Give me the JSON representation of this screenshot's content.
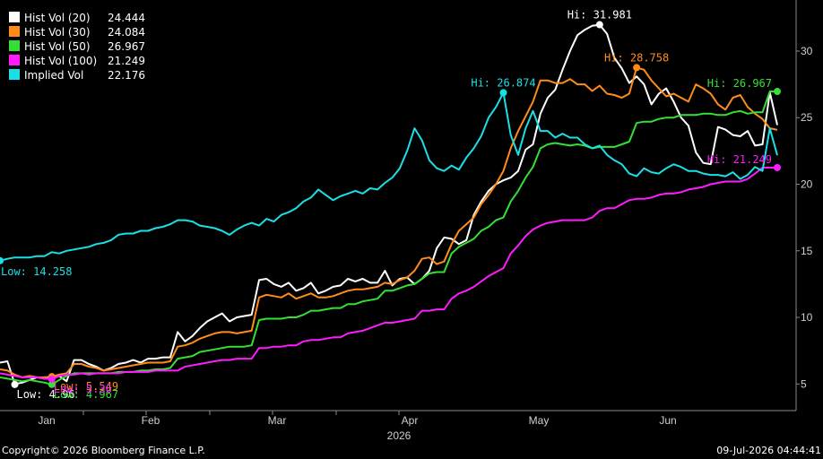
{
  "chart_data": {
    "type": "line",
    "year_label": "2026",
    "x_ticks": [
      "Jan",
      "Feb",
      "Mar",
      "Apr",
      "May",
      "Jun"
    ],
    "y_ticks": [
      5,
      10,
      15,
      20,
      25,
      30
    ],
    "ylim": [
      3,
      33.5
    ],
    "grid": false,
    "legend_position": "top-left",
    "series": [
      {
        "name": "Hist Vol (20)",
        "last": "24.444",
        "color": "#ffffff",
        "values": [
          6.6,
          6.7,
          5.0,
          5.1,
          5.3,
          5.5,
          5.4,
          5.5,
          5.6,
          5.2,
          6.8,
          6.8,
          6.5,
          6.3,
          6.0,
          6.2,
          6.5,
          6.6,
          6.8,
          6.6,
          6.9,
          6.9,
          7.0,
          7.0,
          8.9,
          8.2,
          8.6,
          9.2,
          9.7,
          10.0,
          10.3,
          9.7,
          10.0,
          10.1,
          10.2,
          12.8,
          12.9,
          12.5,
          12.3,
          12.6,
          12.0,
          12.2,
          12.6,
          11.8,
          12.0,
          12.3,
          12.4,
          12.9,
          12.7,
          12.9,
          12.6,
          12.6,
          13.5,
          12.4,
          12.9,
          13.0,
          12.5,
          12.9,
          13.5,
          15.2,
          16.0,
          15.9,
          15.5,
          15.8,
          17.7,
          18.7,
          19.5,
          20.0,
          20.3,
          20.5,
          21.0,
          22.6,
          23.0,
          25.3,
          26.5,
          27.1,
          28.6,
          30.0,
          31.2,
          31.6,
          31.9,
          31.981,
          31.3,
          29.5,
          28.7,
          27.6,
          28.1,
          27.5,
          26.0,
          26.8,
          27.2,
          26.2,
          25.0,
          24.4,
          22.4,
          21.6,
          21.5,
          24.3,
          24.1,
          23.7,
          23.6,
          24.0,
          22.9,
          23.0,
          26.9,
          24.444
        ]
      },
      {
        "name": "Hist Vol (30)",
        "last": "24.084",
        "color": "#ff8c1a",
        "values": [
          6.1,
          6.0,
          5.7,
          5.5,
          5.6,
          5.5,
          5.5,
          5.549,
          5.7,
          5.8,
          6.5,
          6.5,
          6.3,
          6.2,
          6.0,
          6.1,
          6.2,
          6.3,
          6.4,
          6.5,
          6.6,
          6.6,
          6.6,
          6.7,
          7.8,
          7.9,
          8.1,
          8.4,
          8.6,
          8.8,
          8.9,
          8.9,
          8.8,
          8.9,
          9.0,
          11.5,
          11.7,
          11.6,
          11.5,
          11.8,
          11.4,
          11.6,
          11.8,
          11.5,
          11.5,
          11.6,
          11.8,
          12.0,
          12.1,
          12.1,
          12.2,
          12.3,
          12.6,
          12.5,
          12.8,
          13.0,
          13.5,
          14.4,
          14.5,
          14.0,
          14.2,
          15.5,
          16.5,
          17.0,
          17.5,
          18.5,
          19.2,
          20.0,
          21.0,
          22.7,
          24.0,
          25.1,
          26.2,
          27.8,
          27.8,
          27.6,
          27.6,
          27.9,
          27.5,
          27.5,
          27.0,
          27.4,
          26.8,
          26.7,
          26.5,
          26.8,
          28.758,
          28.6,
          27.8,
          27.2,
          26.6,
          26.8,
          26.5,
          26.2,
          27.5,
          27.2,
          26.8,
          26.0,
          25.6,
          26.5,
          26.7,
          25.8,
          25.3,
          24.9,
          24.2,
          24.084
        ]
      },
      {
        "name": "Hist Vol (50)",
        "last": "26.967",
        "color": "#33e033",
        "values": [
          5.5,
          5.4,
          5.3,
          5.2,
          5.3,
          5.2,
          5.1,
          4.967,
          5.3,
          5.6,
          5.8,
          5.8,
          5.8,
          5.8,
          5.8,
          5.8,
          5.9,
          5.9,
          5.9,
          6.0,
          6.0,
          6.1,
          6.1,
          6.2,
          6.9,
          7.0,
          7.1,
          7.4,
          7.5,
          7.6,
          7.7,
          7.8,
          7.8,
          7.8,
          7.9,
          9.8,
          9.9,
          9.9,
          9.9,
          10.0,
          10.0,
          10.2,
          10.5,
          10.5,
          10.6,
          10.7,
          10.7,
          11.0,
          11.0,
          11.2,
          11.3,
          11.4,
          12.0,
          12.0,
          12.2,
          12.4,
          12.5,
          12.9,
          13.3,
          13.4,
          13.4,
          14.8,
          15.3,
          15.6,
          15.9,
          16.5,
          16.8,
          17.3,
          17.5,
          18.7,
          19.5,
          20.5,
          21.3,
          22.7,
          23.0,
          23.1,
          23.0,
          22.9,
          23.0,
          22.9,
          22.7,
          22.8,
          22.8,
          22.8,
          23.0,
          23.2,
          24.6,
          24.7,
          24.7,
          24.9,
          25.0,
          25.0,
          25.2,
          25.2,
          25.2,
          25.3,
          25.3,
          25.2,
          25.2,
          25.4,
          25.5,
          25.3,
          25.4,
          25.4,
          26.967,
          26.967
        ]
      },
      {
        "name": "Hist Vol (100)",
        "last": "21.249",
        "color": "#ff1aff",
        "values": [
          5.8,
          5.7,
          5.6,
          5.5,
          5.5,
          5.5,
          5.4,
          5.36,
          5.6,
          5.7,
          5.7,
          5.8,
          5.7,
          5.8,
          5.8,
          5.8,
          5.8,
          5.9,
          5.9,
          5.9,
          5.9,
          6.0,
          6.0,
          6.0,
          6.0,
          6.3,
          6.4,
          6.5,
          6.6,
          6.7,
          6.8,
          6.8,
          6.9,
          6.9,
          6.9,
          7.7,
          7.7,
          7.8,
          7.8,
          7.9,
          7.9,
          8.2,
          8.3,
          8.3,
          8.4,
          8.5,
          8.5,
          8.8,
          8.9,
          9.0,
          9.2,
          9.4,
          9.6,
          9.6,
          9.7,
          9.8,
          9.9,
          10.5,
          10.5,
          10.6,
          10.6,
          11.4,
          11.8,
          12.0,
          12.3,
          12.7,
          13.1,
          13.4,
          13.7,
          14.8,
          15.4,
          16.1,
          16.6,
          16.9,
          17.1,
          17.2,
          17.3,
          17.3,
          17.3,
          17.3,
          17.5,
          18.0,
          18.2,
          18.2,
          18.5,
          18.8,
          18.9,
          18.9,
          19.0,
          19.2,
          19.3,
          19.3,
          19.4,
          19.6,
          19.7,
          19.8,
          20.0,
          20.1,
          20.2,
          20.2,
          20.2,
          20.4,
          20.8,
          21.249,
          21.249,
          21.249
        ]
      },
      {
        "name": "Implied Vol",
        "last": "22.176",
        "color": "#1ae0e6",
        "values": [
          14.258,
          14.4,
          14.5,
          14.5,
          14.5,
          14.6,
          14.6,
          14.9,
          14.8,
          15.0,
          15.1,
          15.2,
          15.3,
          15.5,
          15.6,
          15.8,
          16.2,
          16.3,
          16.3,
          16.5,
          16.5,
          16.7,
          16.8,
          17.0,
          17.3,
          17.3,
          17.2,
          16.9,
          16.8,
          16.7,
          16.5,
          16.2,
          16.6,
          16.9,
          17.1,
          16.9,
          17.4,
          17.2,
          17.7,
          17.9,
          18.2,
          18.7,
          19.0,
          19.6,
          19.2,
          18.8,
          19.1,
          19.3,
          19.5,
          19.3,
          19.7,
          19.6,
          20.1,
          20.5,
          21.2,
          22.5,
          24.2,
          23.3,
          21.8,
          21.2,
          21.0,
          21.4,
          21.1,
          22.0,
          22.7,
          23.6,
          25.0,
          25.8,
          26.874,
          23.7,
          22.2,
          24.2,
          25.5,
          24.0,
          24.0,
          23.5,
          23.8,
          23.5,
          23.5,
          23.0,
          22.7,
          22.9,
          22.2,
          21.8,
          21.5,
          20.8,
          20.6,
          21.2,
          20.9,
          20.8,
          21.2,
          21.5,
          21.3,
          21.0,
          21.0,
          20.8,
          20.7,
          20.7,
          20.6,
          20.9,
          20.4,
          20.7,
          21.3,
          21.0,
          24.2,
          22.176
        ]
      }
    ],
    "annotations": [
      {
        "series": 0,
        "kind": "Hi",
        "text": "Hi: 31.981",
        "index": 81,
        "value": 31.981
      },
      {
        "series": 1,
        "kind": "Hi",
        "text": "Hi: 28.758",
        "index": 86,
        "value": 28.758
      },
      {
        "series": 4,
        "kind": "Hi",
        "text": "Hi: 26.874",
        "index": 68,
        "value": 26.874
      },
      {
        "series": 2,
        "kind": "Hi",
        "text": "Hi: 26.967",
        "index": 105,
        "value": 26.967
      },
      {
        "series": 3,
        "kind": "Hi",
        "text": "Hi: 21.249",
        "index": 105,
        "value": 21.249
      },
      {
        "series": 4,
        "kind": "Low",
        "text": "Low: 14.258",
        "index": 0,
        "value": 14.258
      },
      {
        "series": 0,
        "kind": "Low",
        "text": "Low: 4.96",
        "index": 2,
        "value": 4.96
      },
      {
        "series": 1,
        "kind": "Low",
        "text": "Low: 5.549",
        "index": 7,
        "value": 5.549
      },
      {
        "series": 2,
        "kind": "Low",
        "text": "Low: 4.967",
        "index": 7,
        "value": 4.967
      },
      {
        "series": 3,
        "kind": "Low",
        "text": "Low: 5.36",
        "index": 7,
        "value": 5.36
      }
    ]
  },
  "footer": {
    "copyright": "Copyright© 2026 Bloomberg Finance L.P.",
    "timestamp": "09-Jul-2026 04:44:41"
  }
}
